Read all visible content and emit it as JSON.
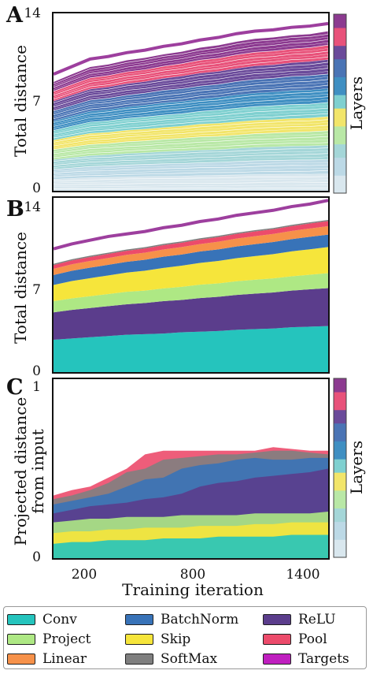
{
  "chart_data": [
    {
      "panel": "A",
      "type": "area",
      "stacked": true,
      "xlabel": "",
      "ylabel": "Total distance",
      "ylim": [
        0,
        14
      ],
      "yticks": [
        "0",
        "7",
        "14"
      ],
      "x": [
        0,
        100,
        200,
        300,
        400,
        500,
        600,
        700,
        800,
        900,
        1000,
        1100,
        1200,
        1300,
        1400,
        1500
      ],
      "top_line": [
        9.2,
        9.8,
        10.4,
        10.6,
        10.9,
        11.1,
        11.4,
        11.6,
        11.9,
        12.1,
        12.4,
        12.6,
        12.7,
        12.9,
        13.0,
        13.2
      ],
      "colorbar_label": "Layers",
      "note_layers": 56
    },
    {
      "panel": "B",
      "type": "area",
      "stacked": true,
      "xlabel": "",
      "ylabel": "Total distance",
      "ylim": [
        0,
        14
      ],
      "yticks": [
        "0",
        "7",
        "14"
      ],
      "x": [
        0,
        100,
        200,
        300,
        400,
        500,
        600,
        700,
        800,
        900,
        1000,
        1100,
        1200,
        1300,
        1400,
        1500
      ],
      "series": [
        {
          "name": "Conv",
          "values": [
            2.6,
            2.7,
            2.8,
            2.9,
            3.0,
            3.05,
            3.1,
            3.2,
            3.25,
            3.3,
            3.4,
            3.45,
            3.5,
            3.6,
            3.65,
            3.7
          ]
        },
        {
          "name": "ReLU",
          "values": [
            2.2,
            2.3,
            2.35,
            2.4,
            2.45,
            2.5,
            2.6,
            2.6,
            2.7,
            2.75,
            2.8,
            2.85,
            2.9,
            2.95,
            3.0,
            3.05
          ]
        },
        {
          "name": "Project",
          "values": [
            0.9,
            0.92,
            0.95,
            0.97,
            1.0,
            1.0,
            1.02,
            1.05,
            1.07,
            1.08,
            1.1,
            1.12,
            1.13,
            1.15,
            1.17,
            1.2
          ]
        },
        {
          "name": "Skip",
          "values": [
            1.3,
            1.4,
            1.45,
            1.5,
            1.55,
            1.6,
            1.65,
            1.7,
            1.75,
            1.8,
            1.85,
            1.9,
            1.95,
            2.0,
            2.05,
            2.1
          ]
        },
        {
          "name": "BatchNorm",
          "values": [
            0.8,
            0.82,
            0.84,
            0.85,
            0.86,
            0.88,
            0.9,
            0.9,
            0.92,
            0.93,
            0.95,
            0.96,
            0.97,
            0.98,
            1.0,
            1.0
          ]
        },
        {
          "name": "Linear",
          "values": [
            0.5,
            0.52,
            0.54,
            0.55,
            0.56,
            0.57,
            0.58,
            0.6,
            0.6,
            0.62,
            0.63,
            0.64,
            0.65,
            0.66,
            0.67,
            0.68
          ]
        },
        {
          "name": "Pool",
          "values": [
            0.3,
            0.31,
            0.32,
            0.33,
            0.33,
            0.34,
            0.35,
            0.35,
            0.36,
            0.37,
            0.37,
            0.38,
            0.38,
            0.39,
            0.4,
            0.4
          ]
        },
        {
          "name": "SoftMax",
          "values": [
            0.1,
            0.1,
            0.1,
            0.1,
            0.1,
            0.1,
            0.1,
            0.1,
            0.1,
            0.1,
            0.1,
            0.1,
            0.1,
            0.1,
            0.1,
            0.1
          ]
        }
      ],
      "top_line": [
        9.9,
        10.3,
        10.6,
        10.9,
        11.1,
        11.3,
        11.6,
        11.8,
        12.1,
        12.3,
        12.6,
        12.8,
        13.0,
        13.3,
        13.5,
        13.8
      ]
    },
    {
      "panel": "C",
      "type": "area",
      "xlabel": "Training iteration",
      "ylabel": "Projected distance from input",
      "ylim": [
        0,
        1
      ],
      "yticks": [
        "0",
        "1"
      ],
      "xlim": [
        0,
        1500
      ],
      "xticks": [
        "200",
        "800",
        "1400"
      ],
      "x": [
        0,
        100,
        200,
        300,
        400,
        500,
        600,
        700,
        800,
        900,
        1000,
        1100,
        1200,
        1300,
        1400,
        1500
      ],
      "series": [
        {
          "name": "Pool",
          "values": [
            0.35,
            0.38,
            0.4,
            0.45,
            0.5,
            0.58,
            0.6,
            0.6,
            0.6,
            0.6,
            0.6,
            0.6,
            0.62,
            0.61,
            0.6,
            0.6
          ]
        },
        {
          "name": "SoftMax",
          "values": [
            0.33,
            0.35,
            0.38,
            0.42,
            0.48,
            0.5,
            0.55,
            0.56,
            0.57,
            0.58,
            0.58,
            0.59,
            0.6,
            0.6,
            0.59,
            0.58
          ]
        },
        {
          "name": "BatchNorm",
          "values": [
            0.3,
            0.32,
            0.34,
            0.36,
            0.4,
            0.44,
            0.45,
            0.5,
            0.52,
            0.53,
            0.55,
            0.56,
            0.55,
            0.55,
            0.56,
            0.56
          ]
        },
        {
          "name": "ReLU",
          "values": [
            0.25,
            0.27,
            0.29,
            0.3,
            0.31,
            0.33,
            0.34,
            0.36,
            0.4,
            0.42,
            0.43,
            0.45,
            0.46,
            0.47,
            0.48,
            0.5
          ]
        },
        {
          "name": "Project",
          "values": [
            0.2,
            0.21,
            0.22,
            0.22,
            0.23,
            0.23,
            0.23,
            0.24,
            0.24,
            0.24,
            0.24,
            0.25,
            0.25,
            0.25,
            0.25,
            0.26
          ]
        },
        {
          "name": "Skip",
          "values": [
            0.14,
            0.15,
            0.15,
            0.16,
            0.16,
            0.17,
            0.17,
            0.17,
            0.18,
            0.18,
            0.18,
            0.19,
            0.19,
            0.2,
            0.2,
            0.2
          ]
        },
        {
          "name": "Conv",
          "values": [
            0.08,
            0.09,
            0.09,
            0.1,
            0.1,
            0.1,
            0.11,
            0.11,
            0.11,
            0.12,
            0.12,
            0.12,
            0.12,
            0.13,
            0.13,
            0.13
          ]
        }
      ],
      "colorbar_label": "Layers"
    }
  ],
  "panels": {
    "a": "A",
    "b": "B",
    "c": "C"
  },
  "legend": {
    "items": [
      {
        "label": "Conv",
        "color": "#25c4bd"
      },
      {
        "label": "BatchNorm",
        "color": "#3873b8"
      },
      {
        "label": "ReLU",
        "color": "#5b3d8c"
      },
      {
        "label": "Project",
        "color": "#aee884"
      },
      {
        "label": "Skip",
        "color": "#f6e53b"
      },
      {
        "label": "Pool",
        "color": "#ec4b6b"
      },
      {
        "label": "Linear",
        "color": "#f6914a"
      },
      {
        "label": "SoftMax",
        "color": "#7f7f7f"
      },
      {
        "label": "Targets",
        "color": "#bf1fbf"
      }
    ]
  },
  "colors": {
    "top_line": "#9d3f9e",
    "colorbar_stops": [
      "#d9e7ee",
      "#bcd9e6",
      "#a4d6d8",
      "#b9e8a6",
      "#f2e56a",
      "#7fd0d0",
      "#3f8fc2",
      "#4a74b5",
      "#6a4a9a",
      "#e8527a",
      "#8c3a90"
    ]
  }
}
